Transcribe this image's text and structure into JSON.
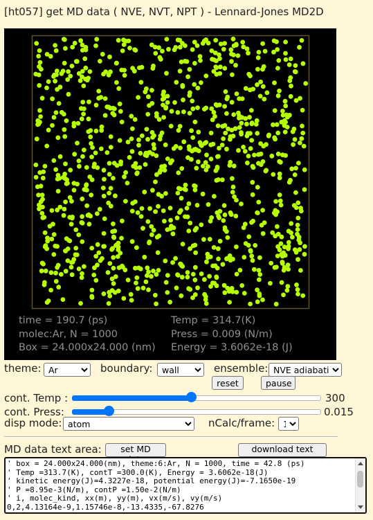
{
  "title": "[ht057] get MD data ( NVE, NVT, NPT ) - Lennard-Jones MD2D",
  "canvas": {
    "background": "#000000",
    "particle_color": "#b6ff00",
    "box_border_color": "#5b5230",
    "particle_count_hint": 1000
  },
  "info": {
    "time": "time = 190.7 (ps)",
    "temp": "Temp = 314.7(K)",
    "molec": "molec:Ar, N = 1000",
    "press": "Press = 0.009 (N/m)",
    "box": "Box = 24.000x24.000 (nm)",
    "energy": "Energy = 3.6062e-18 (J)"
  },
  "controls": {
    "theme_label": "theme:",
    "theme_value": "Ar",
    "boundary_label": "boundary:",
    "boundary_value": "wall",
    "ensemble_label": "ensemble:",
    "ensemble_value": "NVE adiabatic",
    "reset_label": "reset",
    "pause_label": "pause",
    "cont_temp_label": "cont. Temp :",
    "cont_temp_value": "300",
    "cont_temp_fraction": 0.48,
    "cont_press_label": "cont. Press:",
    "cont_press_value": "0.015",
    "cont_press_fraction": 0.15,
    "disp_mode_label": "disp mode:",
    "disp_mode_value": "atom",
    "ncalc_label": "nCalc/frame:",
    "ncalc_value": "1"
  },
  "md_text": {
    "label": "MD data text area:",
    "set_button": "set MD data",
    "download_button": "download text area",
    "lines": [
      "' box = 24.000x24.000(nm), theme:6:Ar, N = 1000, time = 42.8 (ps)",
      "' Temp =313.7(K), contT =300.0(K), Energy = 3.6062e-18(J)",
      "' kinetic energy(J)=4.3227e-18, potential energy(J)=-7.1650e-19",
      "' P =8.95e-3(N/m), contP =1.50e-2(N/m)",
      "' i, molec_kind, xx(m), yy(m), vx(m/s), vy(m/s)",
      "0,2,4.13164e-9,1.15746e-8,-13.4335,-67.8276"
    ]
  }
}
